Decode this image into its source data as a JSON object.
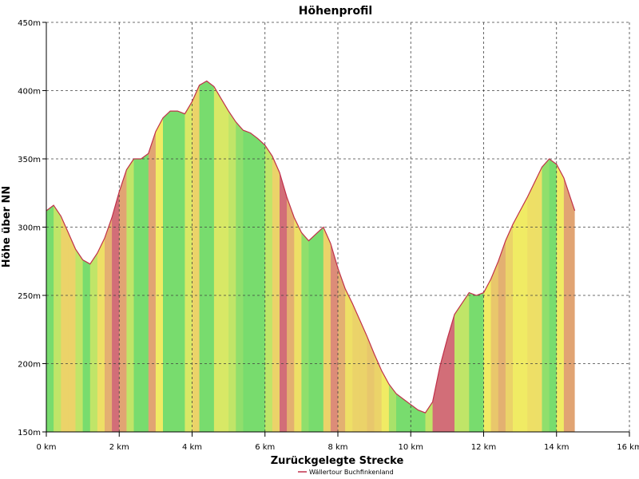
{
  "chart_data": {
    "type": "area",
    "title": "Höhenprofil",
    "xlabel": "Zurückgelegte Strecke",
    "ylabel": "Höhe über NN",
    "xlim": [
      0,
      16
    ],
    "ylim": [
      150,
      450
    ],
    "x_ticks": [
      0,
      2,
      4,
      6,
      8,
      10,
      12,
      14,
      16
    ],
    "x_tick_labels": [
      "0 km",
      "2 km",
      "4 km",
      "6 km",
      "8 km",
      "10 km",
      "12 km",
      "14 km",
      "16 km"
    ],
    "y_ticks": [
      150,
      200,
      250,
      300,
      350,
      400,
      450
    ],
    "y_tick_labels": [
      "150m",
      "200m",
      "250m",
      "300m",
      "350m",
      "400m",
      "450m"
    ],
    "grid": true,
    "legend_position": "bottom-center",
    "series": [
      {
        "name": "Wällertour Buchfinkenland",
        "line_color": "#c0304a",
        "x": [
          0,
          0.2,
          0.4,
          0.6,
          0.8,
          1.0,
          1.2,
          1.4,
          1.6,
          1.8,
          2.0,
          2.2,
          2.4,
          2.6,
          2.8,
          3.0,
          3.2,
          3.4,
          3.6,
          3.8,
          4.0,
          4.2,
          4.4,
          4.6,
          4.8,
          5.0,
          5.2,
          5.4,
          5.6,
          5.8,
          6.0,
          6.2,
          6.4,
          6.6,
          6.8,
          7.0,
          7.2,
          7.4,
          7.6,
          7.8,
          8.0,
          8.2,
          8.4,
          8.6,
          8.8,
          9.0,
          9.2,
          9.4,
          9.6,
          9.8,
          10.0,
          10.2,
          10.4,
          10.6,
          10.8,
          11.0,
          11.2,
          11.4,
          11.6,
          11.8,
          12.0,
          12.2,
          12.4,
          12.6,
          12.8,
          13.0,
          13.2,
          13.4,
          13.6,
          13.8,
          14.0,
          14.2,
          14.4,
          14.5
        ],
        "y": [
          312,
          316,
          308,
          296,
          284,
          276,
          273,
          281,
          292,
          307,
          326,
          342,
          350,
          350,
          354,
          370,
          380,
          385,
          385,
          383,
          392,
          404,
          407,
          403,
          394,
          385,
          377,
          371,
          369,
          365,
          360,
          352,
          340,
          322,
          307,
          296,
          290,
          295,
          300,
          288,
          270,
          255,
          244,
          232,
          220,
          207,
          195,
          185,
          178,
          174,
          170,
          166,
          164,
          172,
          198,
          218,
          236,
          244,
          252,
          250,
          252,
          262,
          275,
          290,
          302,
          312,
          322,
          333,
          344,
          350,
          346,
          336,
          320,
          312
        ]
      }
    ]
  }
}
